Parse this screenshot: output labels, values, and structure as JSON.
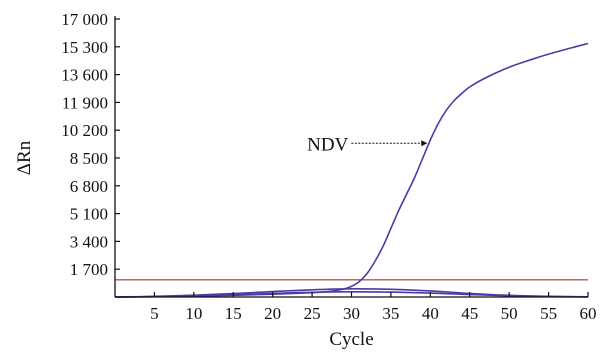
{
  "chart_data": {
    "type": "line",
    "title": "",
    "xlabel": "Cycle",
    "ylabel": "ΔRn",
    "xlim": [
      0,
      60
    ],
    "ylim": [
      0,
      17000
    ],
    "x_ticks": [
      5,
      10,
      15,
      20,
      25,
      30,
      35,
      40,
      45,
      50,
      55,
      60
    ],
    "x_tick_labels": [
      "5",
      "10",
      "15",
      "20",
      "25",
      "30",
      "35",
      "40",
      "45",
      "50",
      "55",
      "60"
    ],
    "y_ticks": [
      1700,
      3400,
      5100,
      6800,
      8500,
      10200,
      11900,
      13600,
      15300,
      17000
    ],
    "y_tick_labels": [
      "1 700",
      "3 400",
      "5 100",
      "6 800",
      "8 500",
      "10 200",
      "11 900",
      "13 600",
      "15 300",
      "17 000"
    ],
    "grid": false,
    "legend": "none",
    "threshold": {
      "value": 1050,
      "color": "#c0504d"
    },
    "annotation": {
      "text": "NDV",
      "x": 40,
      "y": 9400
    },
    "series": [
      {
        "name": "NDV",
        "color": "#4b3aa8",
        "x": [
          0,
          5,
          10,
          15,
          20,
          25,
          27,
          29,
          30,
          31,
          32,
          33,
          34,
          35,
          36,
          37,
          38,
          39,
          40,
          41,
          42,
          43,
          44,
          45,
          47,
          50,
          53,
          55,
          58,
          60
        ],
        "y": [
          0,
          20,
          50,
          100,
          170,
          260,
          330,
          480,
          650,
          950,
          1450,
          2200,
          3100,
          4200,
          5300,
          6300,
          7300,
          8450,
          9600,
          10600,
          11400,
          12000,
          12450,
          12850,
          13400,
          14050,
          14550,
          14850,
          15250,
          15500
        ]
      },
      {
        "color": "#4b3aa8",
        "x": [
          0,
          5,
          10,
          15,
          20,
          25,
          30,
          35,
          40,
          45,
          50,
          55,
          60
        ],
        "y": [
          0,
          40,
          110,
          210,
          330,
          440,
          500,
          470,
          370,
          220,
          100,
          40,
          10
        ]
      },
      {
        "color": "#4b3aa8",
        "x": [
          0,
          5,
          10,
          15,
          20,
          25,
          30,
          35,
          40,
          45,
          50,
          55,
          60
        ],
        "y": [
          0,
          20,
          70,
          140,
          220,
          290,
          320,
          300,
          240,
          150,
          70,
          30,
          5
        ]
      }
    ]
  }
}
